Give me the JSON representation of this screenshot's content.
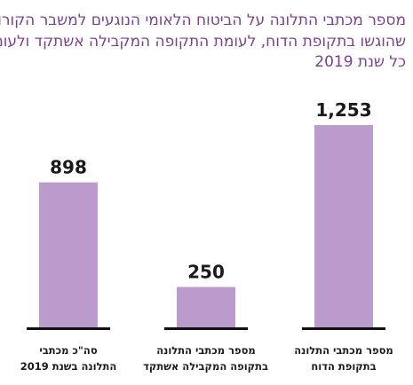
{
  "chart_data": {
    "type": "bar",
    "title_lines": [
      "מספר מכתבי התלונה על הביטוח הלאומי הנוגעים למשבר הקורונה",
      "שהוגשו בתקופת הדוח, לעומת התקופה המקבילה אשתקד ולעומת",
      "כל שנת 2019"
    ],
    "categories": [
      {
        "lines": [
          "מספר מכתבי התלונה",
          "בתקופת הדוח"
        ]
      },
      {
        "lines": [
          "מספר מכתבי התלונה",
          "בתקופה המקבילה אשתקד"
        ]
      },
      {
        "lines": [
          "סה\"כ מכתבי",
          "התלונה בשנת 2019"
        ]
      }
    ],
    "values": [
      1253,
      250,
      898
    ],
    "value_labels": [
      "1,253",
      "250",
      "898"
    ],
    "ylim": [
      0,
      1253
    ],
    "category_order": "right-to-left",
    "bar_color": "#bb9bcb",
    "baseline_color": "#111111",
    "grid": false
  }
}
